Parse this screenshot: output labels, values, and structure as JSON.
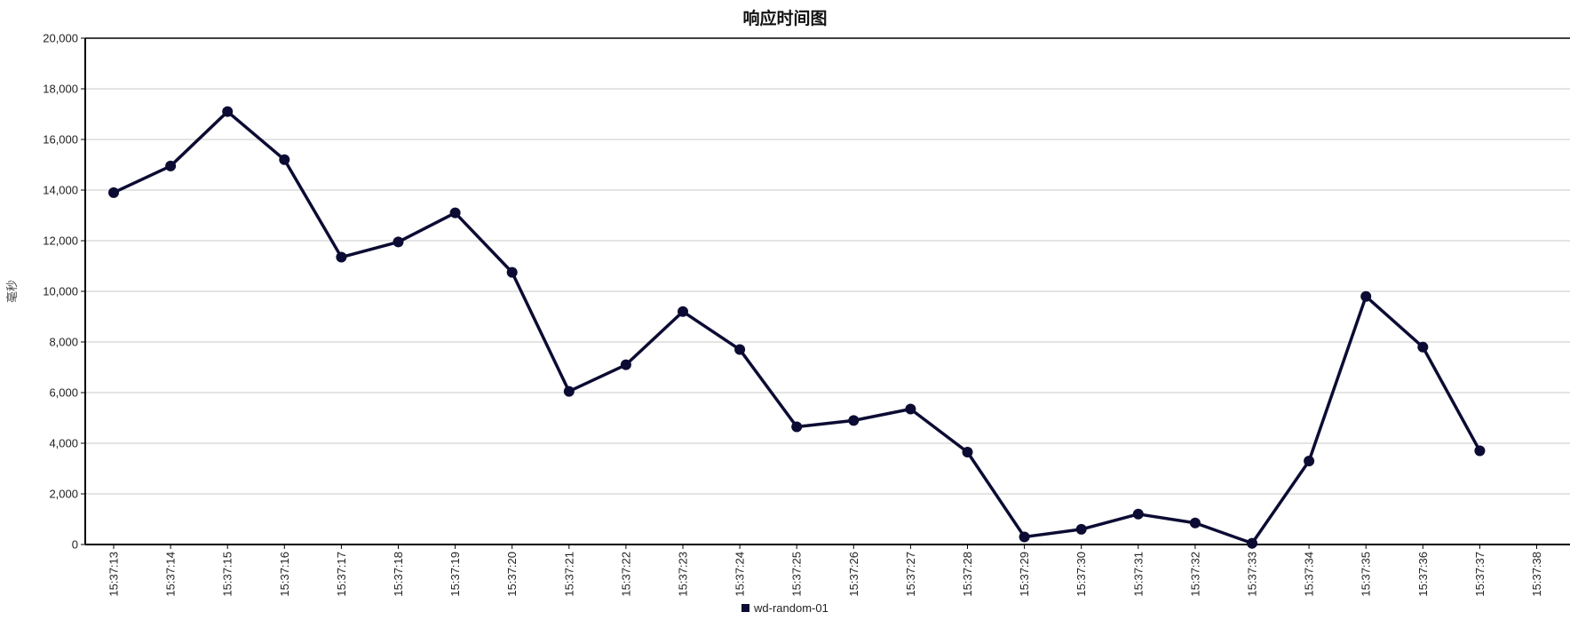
{
  "chart_data": {
    "type": "line",
    "title": "响应时间图",
    "xlabel": "",
    "ylabel": "毫秒",
    "ylim": [
      0,
      20000
    ],
    "yticks": [
      0,
      2000,
      4000,
      6000,
      8000,
      10000,
      12000,
      14000,
      16000,
      18000,
      20000
    ],
    "ytick_labels": [
      "0",
      "2,000",
      "4,000",
      "6,000",
      "8,000",
      "10,000",
      "12,000",
      "14,000",
      "16,000",
      "18,000",
      "20,000"
    ],
    "categories": [
      "15:37:13",
      "15:37:14",
      "15:37:15",
      "15:37:16",
      "15:37:17",
      "15:37:18",
      "15:37:19",
      "15:37:20",
      "15:37:21",
      "15:37:22",
      "15:37:23",
      "15:37:24",
      "15:37:25",
      "15:37:26",
      "15:37:27",
      "15:37:28",
      "15:37:29",
      "15:37:30",
      "15:37:31",
      "15:37:32",
      "15:37:33",
      "15:37:34",
      "15:37:35",
      "15:37:36",
      "15:37:37",
      "15:37:38"
    ],
    "series": [
      {
        "name": "wd-random-01",
        "color": "#0b0b33",
        "values": [
          13900,
          14950,
          17100,
          15200,
          11350,
          11950,
          13100,
          10750,
          6050,
          7100,
          9200,
          7700,
          4650,
          4900,
          5350,
          3650,
          300,
          600,
          1200,
          850,
          50,
          3300,
          9800,
          7800,
          3700,
          null
        ]
      }
    ],
    "grid": true,
    "legend": "bottom-center"
  }
}
